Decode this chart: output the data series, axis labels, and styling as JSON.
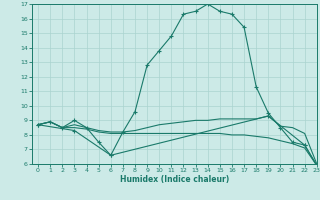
{
  "title": "",
  "xlabel": "Humidex (Indice chaleur)",
  "ylabel": "",
  "background_color": "#cceae7",
  "grid_color": "#aad4d0",
  "line_color": "#1a7a6a",
  "xlim": [
    -0.5,
    23
  ],
  "ylim": [
    6,
    17
  ],
  "xticks": [
    0,
    1,
    2,
    3,
    4,
    5,
    6,
    7,
    8,
    9,
    10,
    11,
    12,
    13,
    14,
    15,
    16,
    17,
    18,
    19,
    20,
    21,
    22,
    23
  ],
  "yticks": [
    6,
    7,
    8,
    9,
    10,
    11,
    12,
    13,
    14,
    15,
    16,
    17
  ],
  "lines": [
    {
      "x": [
        0,
        1,
        2,
        3,
        4,
        5,
        6,
        7,
        8,
        9,
        10,
        11,
        12,
        13,
        14,
        15,
        16,
        17,
        18,
        19,
        20,
        21,
        22,
        23
      ],
      "y": [
        8.7,
        8.9,
        8.5,
        9.0,
        8.5,
        7.5,
        6.6,
        8.2,
        9.6,
        12.8,
        13.8,
        14.8,
        16.3,
        16.5,
        17.0,
        16.5,
        16.3,
        15.4,
        11.3,
        9.5,
        8.5,
        7.5,
        7.3,
        5.9
      ],
      "marker": true
    },
    {
      "x": [
        0,
        1,
        2,
        3,
        4,
        5,
        6,
        7,
        8,
        9,
        10,
        11,
        12,
        13,
        14,
        15,
        16,
        17,
        18,
        19,
        20,
        21,
        22,
        23
      ],
      "y": [
        8.7,
        8.9,
        8.5,
        8.7,
        8.5,
        8.3,
        8.2,
        8.2,
        8.3,
        8.5,
        8.7,
        8.8,
        8.9,
        9.0,
        9.0,
        9.1,
        9.1,
        9.1,
        9.1,
        9.3,
        8.6,
        8.5,
        8.1,
        6.0
      ],
      "marker": false
    },
    {
      "x": [
        0,
        1,
        2,
        3,
        4,
        5,
        6,
        7,
        8,
        9,
        10,
        11,
        12,
        13,
        14,
        15,
        16,
        17,
        18,
        19,
        20,
        21,
        22,
        23
      ],
      "y": [
        8.7,
        8.9,
        8.5,
        8.5,
        8.4,
        8.2,
        8.1,
        8.1,
        8.1,
        8.1,
        8.1,
        8.1,
        8.1,
        8.1,
        8.1,
        8.1,
        8.0,
        8.0,
        7.9,
        7.8,
        7.6,
        7.4,
        7.1,
        5.9
      ],
      "marker": false
    },
    {
      "x": [
        0,
        3,
        6,
        19,
        22,
        23
      ],
      "y": [
        8.7,
        8.3,
        6.6,
        9.3,
        7.3,
        5.9
      ],
      "marker": true
    }
  ]
}
